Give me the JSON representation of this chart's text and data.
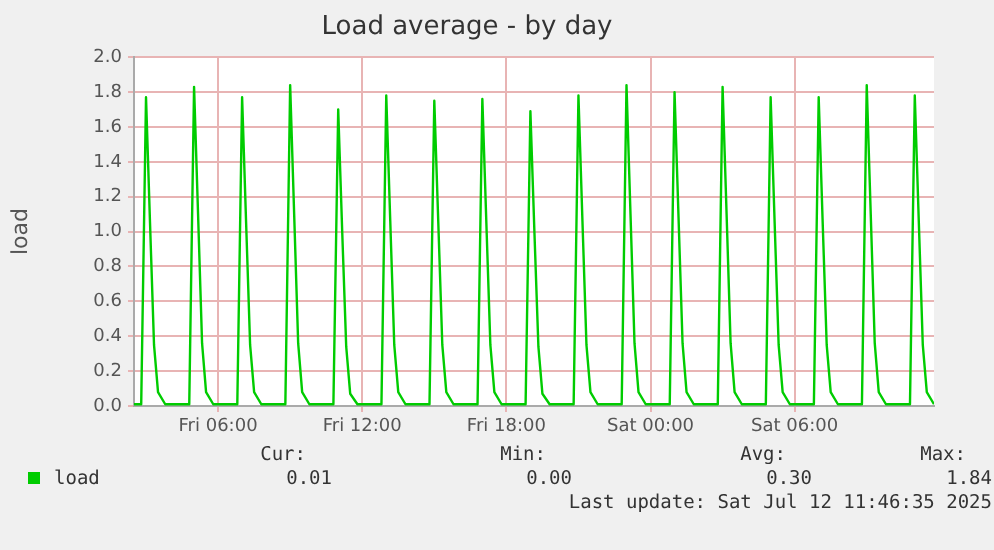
{
  "chart_data": {
    "type": "line",
    "title": "Load average - by day",
    "ylabel": "load",
    "x": [
      "2025-07-11T02:30",
      "2025-07-11T02:48",
      "2025-07-11T03:00",
      "2025-07-11T03:10",
      "2025-07-11T03:20",
      "2025-07-11T03:30",
      "2025-07-11T03:48",
      "2025-07-11T04:48",
      "2025-07-11T05:00",
      "2025-07-11T05:10",
      "2025-07-11T05:20",
      "2025-07-11T05:30",
      "2025-07-11T05:48",
      "2025-07-11T06:48",
      "2025-07-11T07:00",
      "2025-07-11T07:10",
      "2025-07-11T07:20",
      "2025-07-11T07:30",
      "2025-07-11T07:48",
      "2025-07-11T08:48",
      "2025-07-11T09:00",
      "2025-07-11T09:10",
      "2025-07-11T09:20",
      "2025-07-11T09:30",
      "2025-07-11T09:48",
      "2025-07-11T10:48",
      "2025-07-11T11:00",
      "2025-07-11T11:10",
      "2025-07-11T11:20",
      "2025-07-11T11:30",
      "2025-07-11T11:48",
      "2025-07-11T12:48",
      "2025-07-11T13:00",
      "2025-07-11T13:10",
      "2025-07-11T13:20",
      "2025-07-11T13:30",
      "2025-07-11T13:48",
      "2025-07-11T14:48",
      "2025-07-11T15:00",
      "2025-07-11T15:10",
      "2025-07-11T15:20",
      "2025-07-11T15:30",
      "2025-07-11T15:48",
      "2025-07-11T16:48",
      "2025-07-11T17:00",
      "2025-07-11T17:10",
      "2025-07-11T17:20",
      "2025-07-11T17:30",
      "2025-07-11T17:48",
      "2025-07-11T18:48",
      "2025-07-11T19:00",
      "2025-07-11T19:10",
      "2025-07-11T19:20",
      "2025-07-11T19:30",
      "2025-07-11T19:48",
      "2025-07-11T20:48",
      "2025-07-11T21:00",
      "2025-07-11T21:10",
      "2025-07-11T21:20",
      "2025-07-11T21:30",
      "2025-07-11T21:48",
      "2025-07-11T22:48",
      "2025-07-11T23:00",
      "2025-07-11T23:10",
      "2025-07-11T23:20",
      "2025-07-11T23:30",
      "2025-07-11T23:48",
      "2025-07-12T00:48",
      "2025-07-12T01:00",
      "2025-07-12T01:10",
      "2025-07-12T01:20",
      "2025-07-12T01:30",
      "2025-07-12T01:48",
      "2025-07-12T02:48",
      "2025-07-12T03:00",
      "2025-07-12T03:10",
      "2025-07-12T03:20",
      "2025-07-12T03:30",
      "2025-07-12T03:48",
      "2025-07-12T04:48",
      "2025-07-12T05:00",
      "2025-07-12T05:10",
      "2025-07-12T05:20",
      "2025-07-12T05:30",
      "2025-07-12T05:48",
      "2025-07-12T06:48",
      "2025-07-12T07:00",
      "2025-07-12T07:10",
      "2025-07-12T07:20",
      "2025-07-12T07:30",
      "2025-07-12T07:48",
      "2025-07-12T08:48",
      "2025-07-12T09:00",
      "2025-07-12T09:10",
      "2025-07-12T09:20",
      "2025-07-12T09:30",
      "2025-07-12T09:48",
      "2025-07-12T10:48",
      "2025-07-12T11:00",
      "2025-07-12T11:10",
      "2025-07-12T11:20",
      "2025-07-12T11:30",
      "2025-07-12T11:48"
    ],
    "series": [
      {
        "name": "load",
        "color": "#00cc00",
        "values": [
          0.01,
          0.01,
          1.77,
          1.05,
          0.35,
          0.08,
          0.01,
          0.01,
          1.83,
          1.1,
          0.36,
          0.08,
          0.01,
          0.01,
          1.77,
          1.05,
          0.35,
          0.08,
          0.01,
          0.01,
          1.84,
          1.1,
          0.36,
          0.08,
          0.01,
          0.01,
          1.7,
          1.0,
          0.34,
          0.07,
          0.01,
          0.01,
          1.78,
          1.06,
          0.35,
          0.08,
          0.01,
          0.01,
          1.75,
          1.05,
          0.35,
          0.08,
          0.01,
          0.01,
          1.76,
          1.05,
          0.35,
          0.08,
          0.01,
          0.01,
          1.69,
          1.0,
          0.34,
          0.07,
          0.01,
          0.01,
          1.78,
          1.06,
          0.35,
          0.08,
          0.01,
          0.01,
          1.84,
          1.1,
          0.36,
          0.08,
          0.01,
          0.01,
          1.8,
          1.08,
          0.36,
          0.08,
          0.01,
          0.01,
          1.83,
          1.1,
          0.36,
          0.08,
          0.01,
          0.01,
          1.77,
          1.05,
          0.35,
          0.08,
          0.01,
          0.01,
          1.77,
          1.05,
          0.35,
          0.08,
          0.01,
          0.01,
          1.84,
          1.1,
          0.36,
          0.08,
          0.01,
          0.01,
          1.78,
          1.06,
          0.35,
          0.08,
          0.01
        ]
      }
    ],
    "xlim": [
      "2025-07-11T02:30",
      "2025-07-12T11:48"
    ],
    "xticks": [
      {
        "value": "2025-07-11T06:00",
        "label": "Fri 06:00"
      },
      {
        "value": "2025-07-11T12:00",
        "label": "Fri 12:00"
      },
      {
        "value": "2025-07-11T18:00",
        "label": "Fri 18:00"
      },
      {
        "value": "2025-07-12T00:00",
        "label": "Sat 00:00"
      },
      {
        "value": "2025-07-12T06:00",
        "label": "Sat 06:00"
      }
    ],
    "ylim": [
      0,
      2
    ],
    "yticks": [
      {
        "value": 0,
        "label": "0.0"
      },
      0.2,
      0.4,
      0.6,
      0.8,
      {
        "value": 1,
        "label": "1.0"
      },
      1.2,
      1.4,
      1.6,
      1.8,
      {
        "value": 2,
        "label": "2.0"
      }
    ],
    "grid": true,
    "legend": "bottom left",
    "marker": "none",
    "line_style": "solid",
    "annotations": [
      "Cur:",
      "Min:",
      "Avg:",
      "Max:",
      "0.01",
      "0.00",
      "0.30",
      "1.84",
      "Last update: Sat Jul 12 11:46:35 2025"
    ]
  }
}
